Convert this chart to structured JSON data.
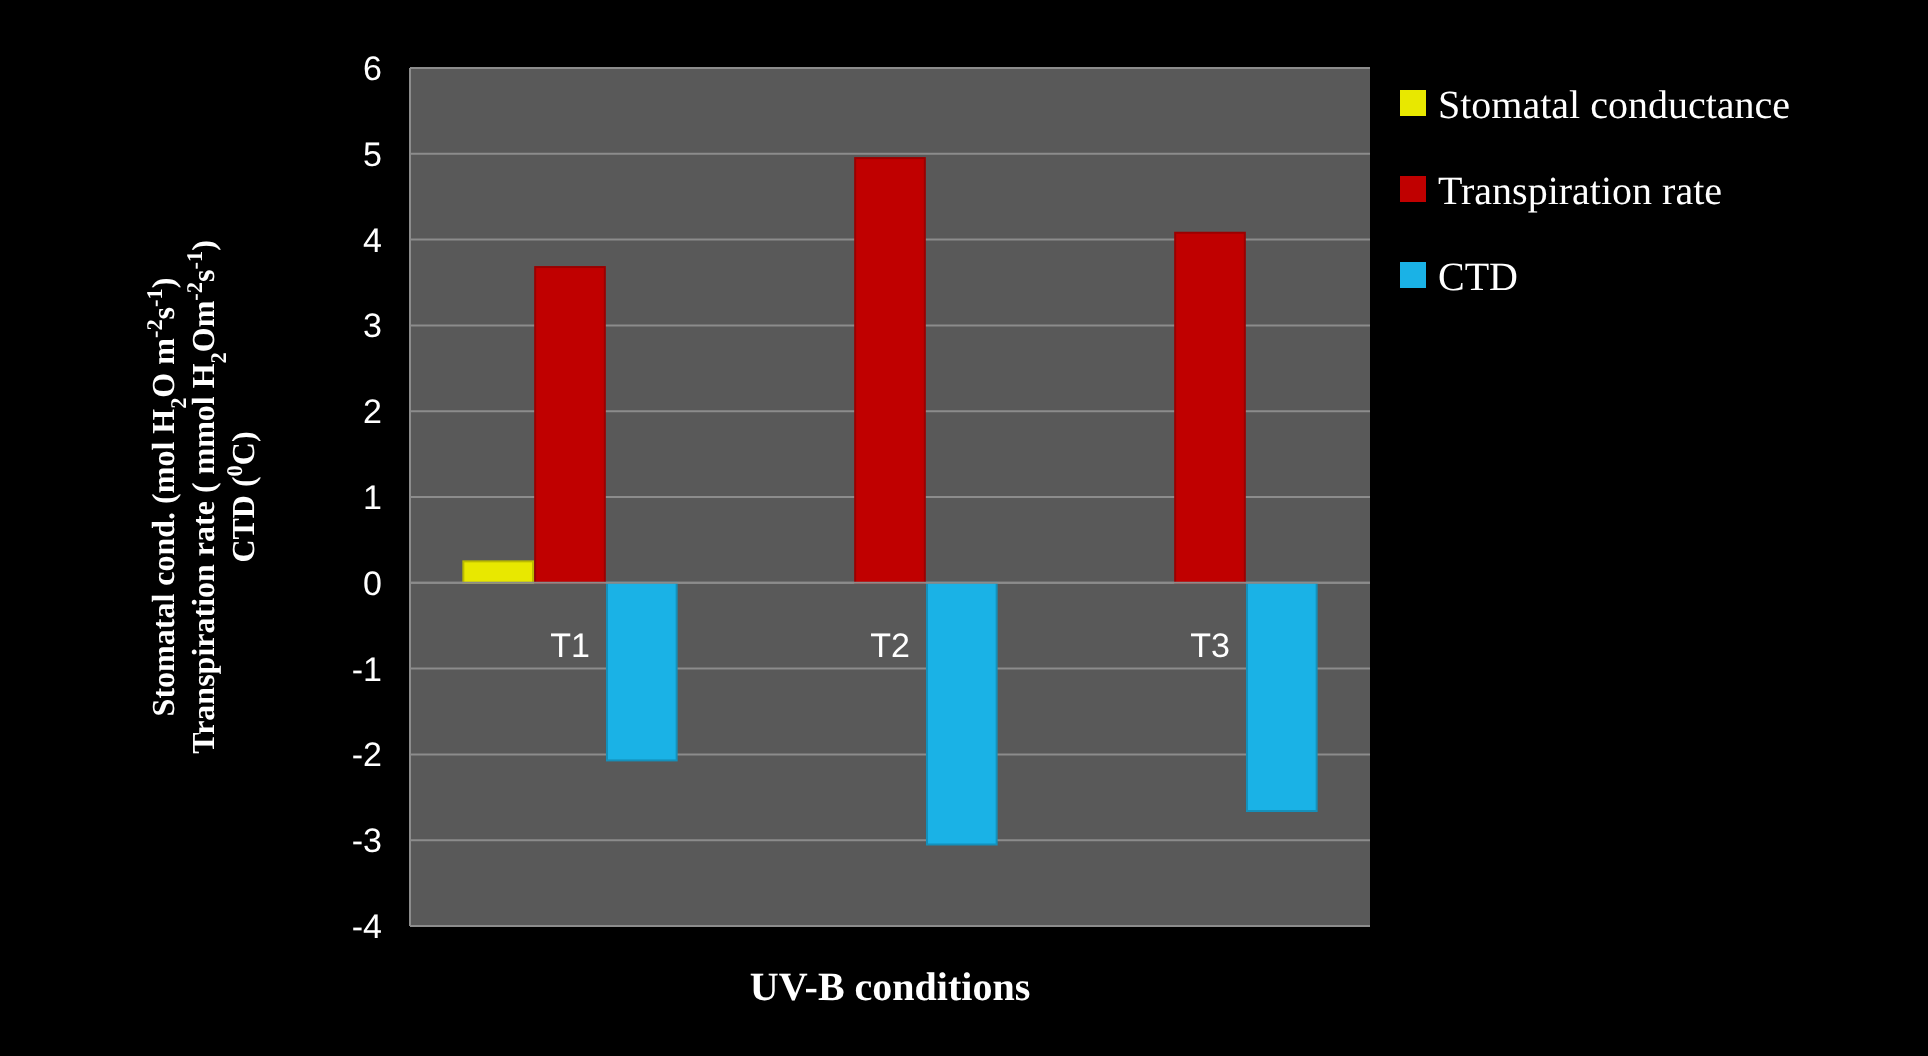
{
  "chart_data": {
    "type": "bar",
    "xlabel": "UV-B conditions",
    "ylabel": "Stomatal cond. (mol H$_{2}$O m$^{-2}$s$^{-1}$)\nTranspiration rate ( mmol H$_{2}$Om$^{-2}$s$^{-1}$)\nCTD ($^{0}$C)",
    "categories": [
      "T1",
      "T2",
      "T3"
    ],
    "series": [
      {
        "name": "Stomatal conductance",
        "color": "#e8e800",
        "values": [
          0.25,
          null,
          null
        ]
      },
      {
        "name": "Transpiration rate",
        "color": "#c00000",
        "values": [
          3.68,
          4.95,
          4.08
        ]
      },
      {
        "name": "CTD",
        "color": "#1ab2e6",
        "values": [
          -2.07,
          -3.05,
          -2.66
        ]
      }
    ],
    "ylim": [
      -4,
      6
    ],
    "yticks": [
      -4,
      -3,
      -2,
      -1,
      0,
      1,
      2,
      3,
      4,
      5,
      6
    ],
    "grid": "y",
    "legend": "right"
  }
}
